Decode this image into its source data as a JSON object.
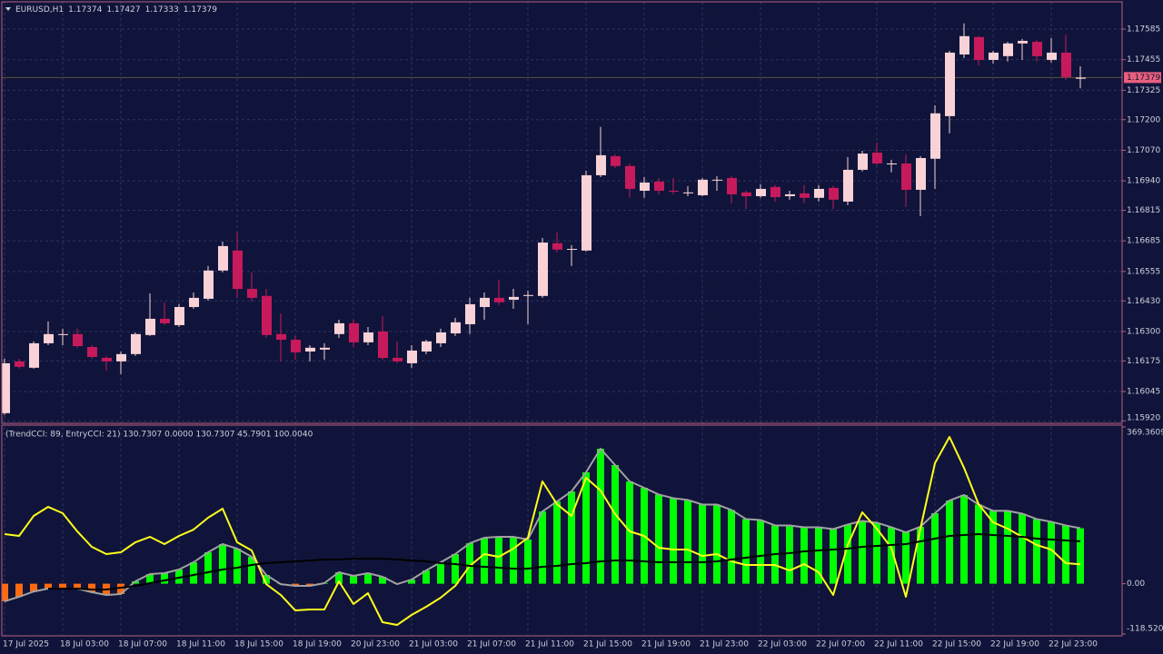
{
  "chart_data": [
    {
      "type": "candlestick",
      "symbol": "EURUSD,H1",
      "x": [
        "17 Jul 2025",
        null,
        null,
        null,
        "18 Jul 03:00",
        null,
        null,
        null,
        "18 Jul 07:00",
        null,
        null,
        null,
        "18 Jul 11:00",
        null,
        null,
        null,
        "18 Jul 15:00",
        null,
        null,
        null,
        "18 Jul 19:00",
        null,
        null,
        null,
        "20 Jul 23:00",
        null,
        null,
        null,
        "21 Jul 03:00",
        null,
        null,
        null,
        "21 Jul 07:00",
        null,
        null,
        null,
        "21 Jul 11:00",
        null,
        null,
        null,
        "21 Jul 15:00",
        null,
        null,
        null,
        "21 Jul 19:00",
        null,
        null,
        null,
        "21 Jul 23:00",
        null,
        null,
        null,
        "22 Jul 03:00",
        null,
        null,
        null,
        "22 Jul 07:00",
        null,
        null,
        null,
        "22 Jul 11:00",
        null,
        null,
        null,
        "22 Jul 15:00",
        null,
        null,
        null,
        "22 Jul 19:00",
        null,
        null,
        null,
        "22 Jul 23:00",
        null,
        null
      ],
      "open": [
        1.15953,
        1.16173,
        1.16146,
        1.1625,
        1.16285,
        1.16289,
        1.16234,
        1.16188,
        1.16173,
        1.16204,
        1.16285,
        1.16354,
        1.16327,
        1.16404,
        1.16439,
        1.16559,
        1.16644,
        1.16481,
        1.16451,
        1.16289,
        1.16265,
        1.16215,
        1.16223,
        1.16289,
        1.16335,
        1.16254,
        1.163,
        1.16188,
        1.16165,
        1.16215,
        1.1625,
        1.16292,
        1.16331,
        1.16404,
        1.16443,
        1.16435,
        1.16451,
        1.16451,
        1.16675,
        1.16648,
        1.16644,
        1.16964,
        1.17045,
        1.17003,
        1.16898,
        1.16937,
        1.16898,
        1.16887,
        1.16879,
        1.16941,
        1.16952,
        1.16891,
        1.16875,
        1.16914,
        1.16875,
        1.16887,
        1.16868,
        1.1691,
        1.16852,
        1.16987,
        1.1706,
        1.1701,
        1.17014,
        1.16902,
        1.17034,
        1.17215,
        1.17477,
        1.17551,
        1.17454,
        1.1747,
        1.17524,
        1.17531,
        1.17454,
        1.17485,
        1.17374
      ],
      "high": [
        1.16184,
        1.16184,
        1.16258,
        1.16343,
        1.16312,
        1.16312,
        1.16242,
        1.16196,
        1.16215,
        1.16296,
        1.16462,
        1.16424,
        1.16416,
        1.16466,
        1.16578,
        1.16682,
        1.16721,
        1.16551,
        1.16481,
        1.16377,
        1.16281,
        1.16242,
        1.1625,
        1.1635,
        1.1635,
        1.16319,
        1.16366,
        1.16258,
        1.16242,
        1.16265,
        1.16312,
        1.16358,
        1.16443,
        1.16466,
        1.1652,
        1.16481,
        1.16474,
        1.16698,
        1.16721,
        1.16667,
        1.16983,
        1.17169,
        1.17053,
        1.17014,
        1.16956,
        1.16952,
        1.16952,
        1.16918,
        1.16952,
        1.1696,
        1.1696,
        1.16898,
        1.16925,
        1.16922,
        1.16898,
        1.16922,
        1.16922,
        1.16918,
        1.17041,
        1.17068,
        1.17103,
        1.1703,
        1.17053,
        1.17045,
        1.17261,
        1.17493,
        1.17609,
        1.17555,
        1.17493,
        1.17531,
        1.17543,
        1.17539,
        1.17547,
        1.17562,
        1.17427
      ],
      "low": [
        1.15945,
        1.16142,
        1.16142,
        1.16242,
        1.16242,
        1.16231,
        1.16184,
        1.16134,
        1.16119,
        1.16196,
        1.16281,
        1.16327,
        1.16319,
        1.16397,
        1.16431,
        1.16551,
        1.16443,
        1.16428,
        1.16273,
        1.16173,
        1.1618,
        1.16173,
        1.1618,
        1.16273,
        1.16234,
        1.16242,
        1.1618,
        1.16165,
        1.16146,
        1.16204,
        1.16234,
        1.16281,
        1.16289,
        1.1635,
        1.16412,
        1.16397,
        1.16331,
        1.16443,
        1.16636,
        1.16578,
        1.1664,
        1.16956,
        1.16995,
        1.16868,
        1.16868,
        1.16883,
        1.16883,
        1.16875,
        1.16875,
        1.16898,
        1.16845,
        1.16821,
        1.16868,
        1.16852,
        1.1686,
        1.16845,
        1.16852,
        1.16821,
        1.16837,
        1.1698,
        1.17007,
        1.16976,
        1.16829,
        1.1679,
        1.16906,
        1.17142,
        1.17462,
        1.17431,
        1.17439,
        1.17447,
        1.17454,
        1.17447,
        1.17443,
        1.17369,
        1.17333
      ],
      "close": [
        1.16165,
        1.1615,
        1.1625,
        1.16289,
        1.16289,
        1.16238,
        1.16192,
        1.16173,
        1.16204,
        1.16289,
        1.16354,
        1.16335,
        1.16404,
        1.16443,
        1.16559,
        1.16663,
        1.16481,
        1.16443,
        1.16285,
        1.16265,
        1.16211,
        1.16231,
        1.16231,
        1.16335,
        1.16254,
        1.16296,
        1.16188,
        1.16173,
        1.16219,
        1.16258,
        1.16296,
        1.16339,
        1.16416,
        1.16443,
        1.16424,
        1.16447,
        1.16455,
        1.16678,
        1.16648,
        1.16651,
        1.16964,
        1.17049,
        1.17003,
        1.16906,
        1.16933,
        1.16898,
        1.16895,
        1.16891,
        1.16945,
        1.16945,
        1.16883,
        1.16875,
        1.16906,
        1.16871,
        1.16883,
        1.16868,
        1.16906,
        1.1686,
        1.16987,
        1.17056,
        1.17014,
        1.17014,
        1.16902,
        1.17037,
        1.17227,
        1.17485,
        1.17555,
        1.17454,
        1.17485,
        1.17524,
        1.17535,
        1.1747,
        1.17485,
        1.17381,
        1.17379
      ],
      "ylim": [
        1.1591,
        1.17697
      ],
      "yticks": [
        1.17585,
        1.17455,
        1.17325,
        {
          "value": 1.172,
          "label": "1.17200"
        },
        {
          "value": 1.1707,
          "label": "1.17070"
        },
        {
          "value": 1.1694,
          "label": "1.16940"
        },
        1.16815,
        1.16685,
        1.16555,
        {
          "value": 1.1643,
          "label": "1.16430"
        },
        {
          "value": 1.163,
          "label": "1.16300"
        },
        1.16175,
        1.16045,
        {
          "value": 1.1592,
          "label": "1.15920"
        }
      ],
      "up_color": "#f8d2d6",
      "down_color": "#c71a5c",
      "price_line_color": "#5c5238",
      "price_box_color": "#e8607e",
      "grid": true
    },
    {
      "type": "indicator",
      "header": "(TrendCCI: 89, EntryCCI: 21)  130.7307 0.0000 130.7307 45.7901 100.0040",
      "series": [
        {
          "values": [
            -41.5,
            -30.8,
            -18.4,
            -11.6,
            -11.6,
            -11.6,
            -20.1,
            -26.5,
            -24.4,
            5.6,
            22.7,
            24.8,
            33.4,
            50.5,
            74.0,
            93.3,
            82.6,
            63.3,
            20.5,
            -1,
            -5.1,
            -5.1,
            1.3,
            27.0,
            18.4,
            24.8,
            16.3,
            -0.9,
            9.8,
            31.2,
            50.5,
            69.8,
            95.4,
            108.3,
            110.4,
            110.4,
            104.0,
            170.3,
            193.8,
            217.4,
            262.4,
            318.0,
            279.5,
            241.0,
            226.0,
            210.1,
            201.5,
            197.3,
            186.5,
            186.5,
            173.7,
            152.3,
            150.1,
            137.3,
            137.3,
            133.0,
            133.0,
            128.6,
            139.4,
            148.0,
            143.7,
            133.0,
            121.1,
            134.0,
            166.1,
            196.0,
            208.9,
            186.5,
            171.6,
            171.6,
            165.1,
            152.3,
            145.9,
            137.3,
            130.7307
          ],
          "color": "#a2a2a2",
          "up_color": "#00ff00",
          "down_color": "#ff6a10",
          "histogram": true
        },
        {
          "values": [
            116.8,
            112.6,
            159.6,
            181.0,
            166.1,
            123.3,
            86.9,
            69.8,
            74.0,
            97.6,
            110.4,
            93.3,
            112.6,
            127.5,
            155.4,
            176.8,
            97.6,
            78.3,
            -0.9,
            -26.5,
            -62.9,
            -60.8,
            -60.8,
            5.6,
            -47.9,
            -22.3,
            -90.7,
            -97.2,
            -73.6,
            -54.3,
            -33.0,
            -5.1,
            41.9,
            69.8,
            63.3,
            82.6,
            108.3,
            241.0,
            187.5,
            159.6,
            249.5,
            219.6,
            163.9,
            123.3,
            112.6,
            84.7,
            80.5,
            80.5,
            65.5,
            69.8,
            52.6,
            44.1,
            44.1,
            44.1,
            31.2,
            46.2,
            27.0,
            -26.5,
            91.2,
            168.2,
            129.7,
            84.7,
            -30.8,
            129.7,
            283.8,
            345.8,
            273.0,
            187.5,
            144.7,
            129.7,
            110.4,
            91.2,
            80.5,
            48.4,
            45.7901
          ],
          "color": "#ffff1a"
        },
        {
          "values": [
            null,
            null,
            null,
            -11.6,
            -11.6,
            -11.6,
            -13.7,
            -13.7,
            -9.4,
            -5.1,
            1.3,
            7.7,
            14.1,
            20.5,
            27.0,
            33.4,
            37.7,
            44.1,
            48.4,
            50.5,
            52.6,
            54.8,
            56.9,
            56.9,
            59.1,
            59.1,
            59.1,
            56.9,
            54.8,
            52.6,
            48.4,
            46.2,
            41.9,
            39.8,
            37.7,
            35.5,
            35.5,
            39.8,
            41.9,
            46.2,
            48.4,
            52.6,
            54.8,
            54.8,
            52.6,
            50.5,
            50.5,
            50.5,
            50.5,
            52.6,
            56.9,
            61.2,
            65.5,
            69.8,
            71.9,
            76.2,
            78.3,
            80.5,
            82.6,
            86.9,
            89.0,
            91.2,
            93.3,
            99.7,
            106.1,
            112.6,
            114.7,
            116.8,
            114.7,
            112.6,
            110.4,
            106.1,
            104.0,
            101.9,
            100.004
          ],
          "color": "#000000"
        }
      ],
      "ylim": [
        -118.5205,
        369.3609
      ],
      "yticks": [
        369.3609,
        {
          "value": 0,
          "label": "0.00"
        },
        -118.5205
      ],
      "grid": false
    }
  ]
}
